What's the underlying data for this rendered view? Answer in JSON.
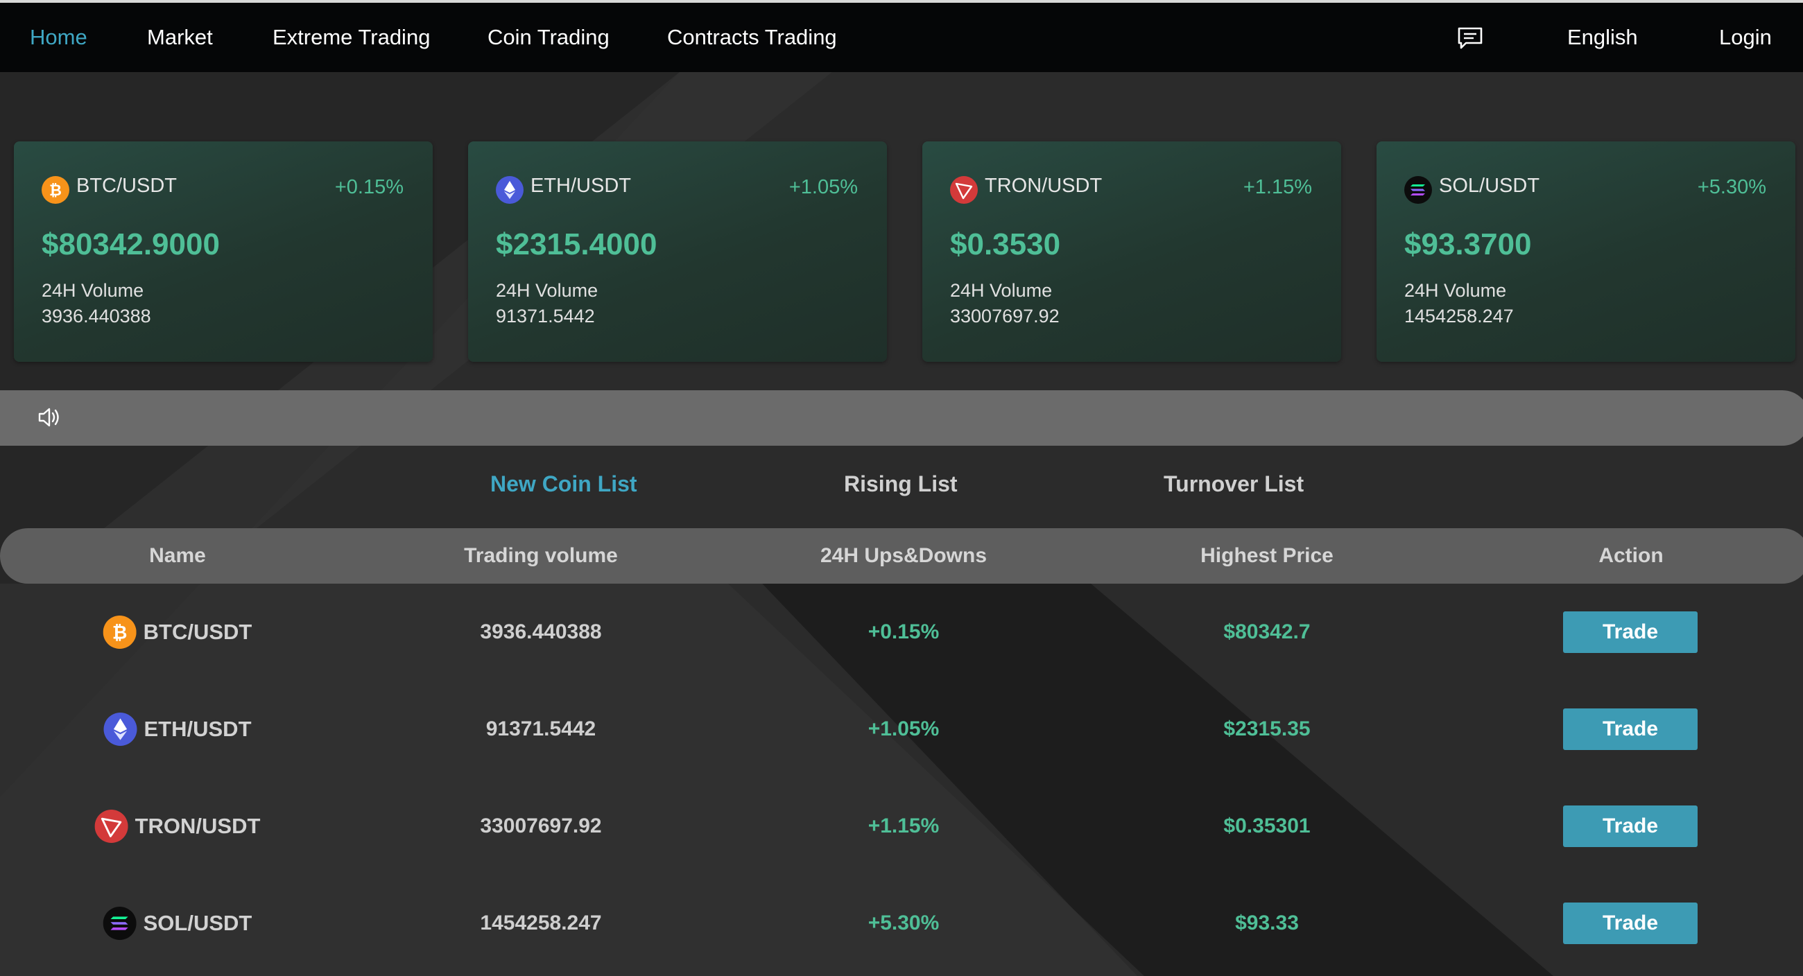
{
  "nav": {
    "items": [
      {
        "label": "Home",
        "active": true
      },
      {
        "label": "Market",
        "active": false
      },
      {
        "label": "Extreme Trading",
        "active": false
      },
      {
        "label": "Coin Trading",
        "active": false
      },
      {
        "label": "Contracts Trading",
        "active": false
      }
    ],
    "message_icon": "message-icon",
    "language": "English",
    "login": "Login"
  },
  "tickers": [
    {
      "pair": "BTC/USDT",
      "change": "+0.15%",
      "price": "$80342.9000",
      "volume_label": "24H Volume",
      "volume": "3936.440388",
      "icon": "bitcoin-icon"
    },
    {
      "pair": "ETH/USDT",
      "change": "+1.05%",
      "price": "$2315.4000",
      "volume_label": "24H Volume",
      "volume": "91371.5442",
      "icon": "ethereum-icon"
    },
    {
      "pair": "TRON/USDT",
      "change": "+1.15%",
      "price": "$0.3530",
      "volume_label": "24H Volume",
      "volume": "33007697.92",
      "icon": "tron-icon"
    },
    {
      "pair": "SOL/USDT",
      "change": "+5.30%",
      "price": "$93.3700",
      "volume_label": "24H Volume",
      "volume": "1454258.247",
      "icon": "solana-icon"
    }
  ],
  "notice": {
    "icon": "speaker-icon"
  },
  "tabs": [
    {
      "label": "New Coin List",
      "active": true
    },
    {
      "label": "Rising List",
      "active": false
    },
    {
      "label": "Turnover List",
      "active": false
    }
  ],
  "table": {
    "headers": [
      "Name",
      "Trading volume",
      "24H Ups&Downs",
      "Highest Price",
      "Action"
    ],
    "rows": [
      {
        "name": "BTC/USDT",
        "volume": "3936.440388",
        "change": "+0.15%",
        "high": "$80342.7",
        "action": "Trade",
        "icon": "bitcoin-icon"
      },
      {
        "name": "ETH/USDT",
        "volume": "91371.5442",
        "change": "+1.05%",
        "high": "$2315.35",
        "action": "Trade",
        "icon": "ethereum-icon"
      },
      {
        "name": "TRON/USDT",
        "volume": "33007697.92",
        "change": "+1.15%",
        "high": "$0.35301",
        "action": "Trade",
        "icon": "tron-icon"
      },
      {
        "name": "SOL/USDT",
        "volume": "1454258.247",
        "change": "+5.30%",
        "high": "$93.33",
        "action": "Trade",
        "icon": "solana-icon"
      }
    ]
  },
  "colors": {
    "accent": "#3fa7c4",
    "positive": "#4fbf97",
    "button": "#3d9bb4",
    "background": "#262626",
    "nav_background": "#050607"
  }
}
